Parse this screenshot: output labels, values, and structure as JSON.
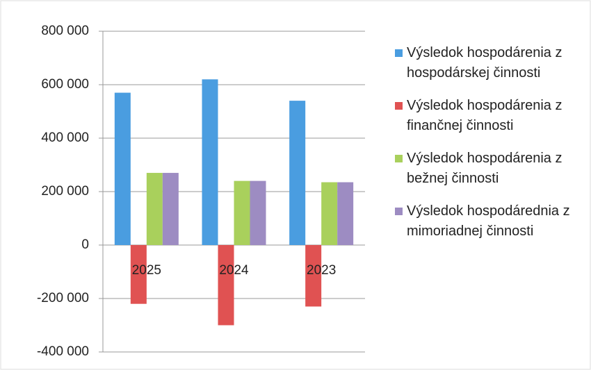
{
  "chart_data": {
    "type": "bar",
    "categories": [
      "2025",
      "2024",
      "2023"
    ],
    "series": [
      {
        "name": "Výsledok hospodárenia z hospodárskej činnosti",
        "color": "#4a9de0",
        "values": [
          570000,
          620000,
          540000
        ]
      },
      {
        "name": "Výsledok hospodárenia z finančnej činnosti",
        "color": "#e05252",
        "values": [
          -220000,
          -300000,
          -230000
        ]
      },
      {
        "name": "Výsledok hospodárenia z bežnej činnosti",
        "color": "#a9d05c",
        "values": [
          270000,
          240000,
          235000
        ]
      },
      {
        "name": "Výsledok hospodárednia z mimoriadnej činnosti",
        "color": "#9d8cc2",
        "values": [
          270000,
          240000,
          235000
        ]
      }
    ],
    "ylim": [
      -400000,
      800000
    ],
    "yticks": [
      {
        "value": -400000,
        "label": "-400 000"
      },
      {
        "value": -200000,
        "label": "-200 000"
      },
      {
        "value": 0,
        "label": "0"
      },
      {
        "value": 200000,
        "label": "200 000"
      },
      {
        "value": 400000,
        "label": "400 000"
      },
      {
        "value": 600000,
        "label": "600 000"
      },
      {
        "value": 800000,
        "label": "800 000"
      }
    ],
    "grid": true,
    "legend": "right"
  }
}
